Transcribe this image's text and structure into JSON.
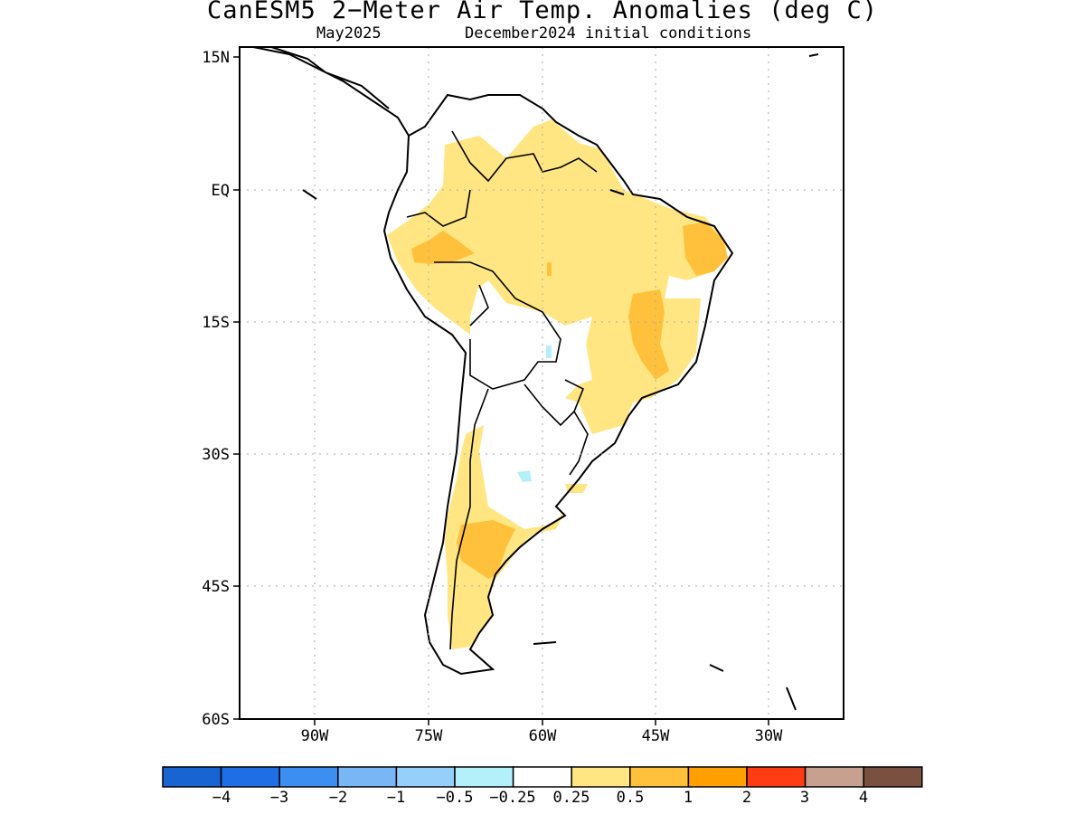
{
  "title": "CanESM5 2−Meter Air Temp. Anomalies (deg C)",
  "subtitle_left": "May2025",
  "subtitle_right": "December2024 initial conditions",
  "lat_labels": [
    "15N",
    "EQ",
    "15S",
    "30S",
    "45S",
    "60S"
  ],
  "lon_labels": [
    "90W",
    "75W",
    "60W",
    "45W",
    "30W"
  ],
  "colorbar": {
    "colors": [
      "#1764d2",
      "#1f6ee6",
      "#3c8ff0",
      "#78b6f6",
      "#96d0fa",
      "#b4f0fa",
      "#ffffff",
      "#ffe682",
      "#ffc03c",
      "#ffa000",
      "#ff3c14",
      "#c8a090",
      "#7a5040"
    ],
    "labels": [
      "−4",
      "−3",
      "−2",
      "−1",
      "−0.5",
      "−0.25",
      "0.25",
      "0.5",
      "1",
      "2",
      "3",
      "4"
    ]
  },
  "legend_colors": {
    "weak_warm": "#ffe682",
    "moderate_warm": "#ffc03c",
    "weak_cool": "#b4f0fa"
  }
}
